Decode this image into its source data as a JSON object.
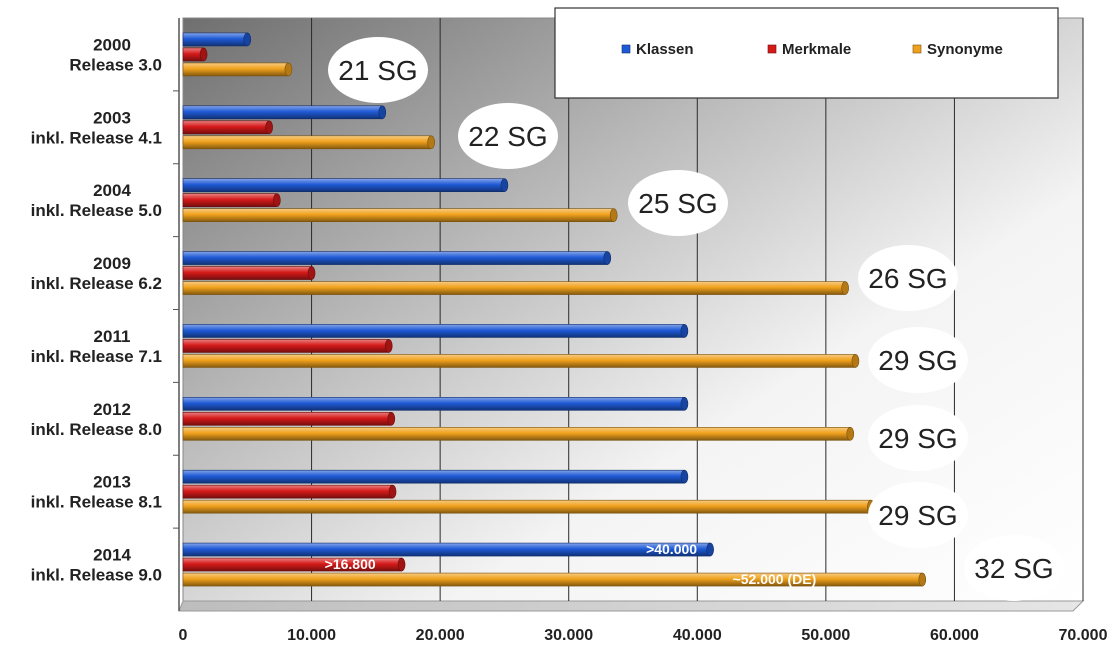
{
  "chart_data": {
    "type": "bar",
    "orientation": "horizontal",
    "categories": [
      [
        "2000",
        "Release 3.0"
      ],
      [
        "2003",
        "inkl. Release 4.1"
      ],
      [
        "2004",
        "inkl. Release 5.0"
      ],
      [
        "2009",
        "inkl. Release 6.2"
      ],
      [
        "2011",
        "inkl. Release 7.1"
      ],
      [
        "2012",
        "inkl. Release 8.0"
      ],
      [
        "2013",
        "inkl. Release 8.1"
      ],
      [
        "2014",
        "inkl. Release 9.0"
      ]
    ],
    "series": [
      {
        "name": "Klassen",
        "color": "#1f5ad6",
        "values": [
          5000,
          15500,
          25000,
          33000,
          39000,
          39000,
          39000,
          41000
        ]
      },
      {
        "name": "Merkmale",
        "color": "#d61a1a",
        "values": [
          1600,
          6700,
          7300,
          10000,
          16000,
          16200,
          16300,
          17000
        ]
      },
      {
        "name": "Synonyme",
        "color": "#f0a11c",
        "values": [
          8200,
          19300,
          33500,
          51500,
          52300,
          51900,
          53500,
          57500
        ]
      }
    ],
    "sg_labels": [
      "21 SG",
      "22 SG",
      "25 SG",
      "26 SG",
      "29 SG",
      "29 SG",
      "29 SG",
      "32 SG"
    ],
    "xlim": [
      0,
      70000
    ],
    "x_ticks": [
      "0",
      "10.000",
      "20.000",
      "30.000",
      "40.000",
      "50.000",
      "60.000",
      "70.000"
    ],
    "bar_labels": {
      "klassen_2014": ">40.000",
      "merkmale_2014": ">16.800",
      "synonyme_2014": "~52.000 (DE)"
    },
    "legend_position": "top-right",
    "grid": true
  }
}
